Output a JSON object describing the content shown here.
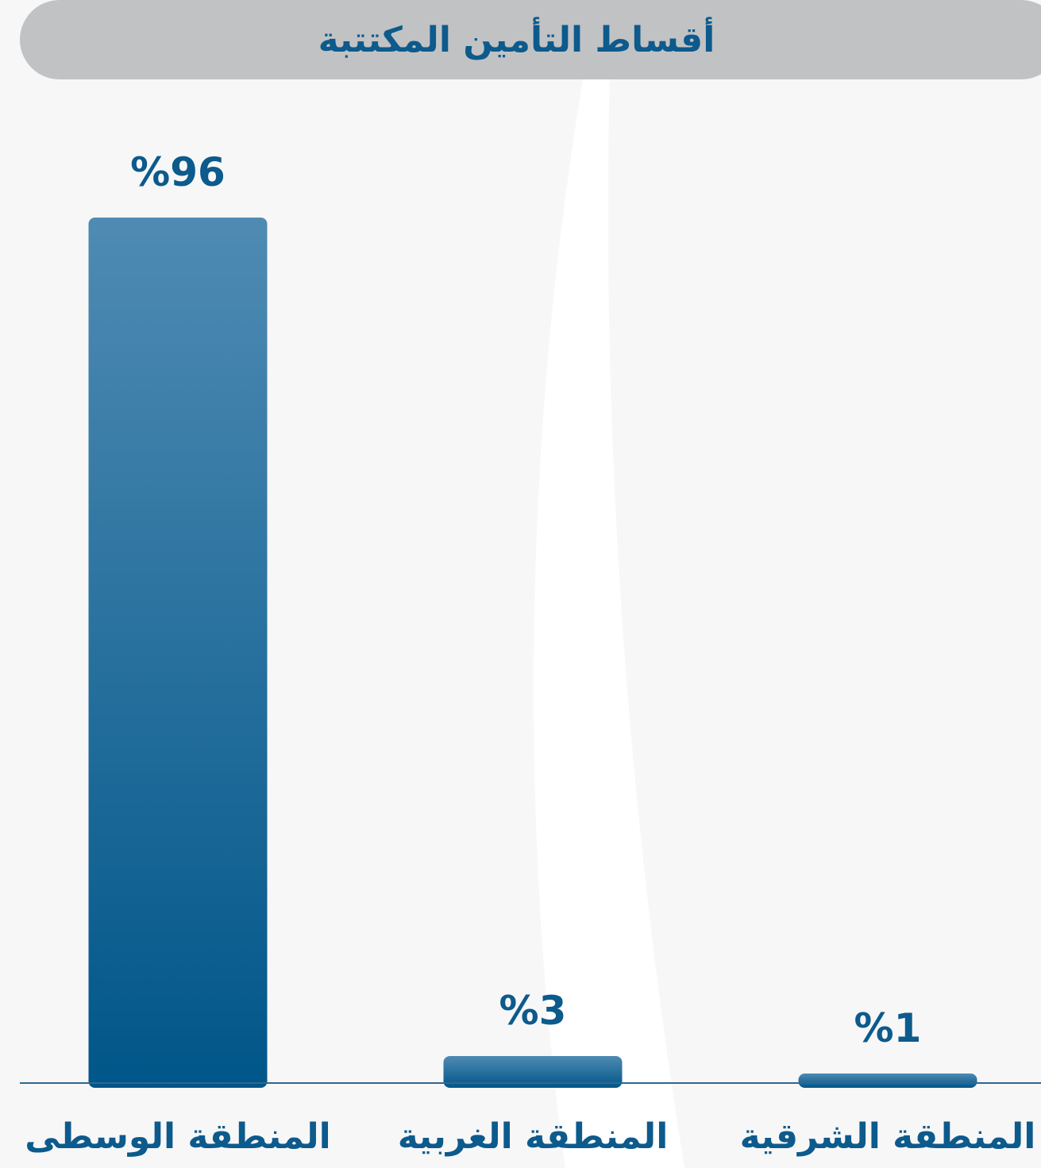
{
  "chart_data": {
    "type": "bar",
    "title": "أقساط التأمين المكتتبة",
    "categories": [
      "المنطقة الوسطى",
      "المنطقة الغربية",
      "المنطقة الشرقية"
    ],
    "values": [
      96,
      3,
      1
    ],
    "data_labels": [
      "%96",
      "%3",
      "%1"
    ],
    "unit": "%",
    "ylim": [
      0,
      96
    ],
    "grid": false,
    "colors": {
      "bar_top": "#4f8bb3",
      "bar_bottom": "#005689",
      "label": "#0d5a8c",
      "axis": "#2f6790",
      "title_bg": "#c1c2c4",
      "background": "#f7f7f7"
    }
  }
}
